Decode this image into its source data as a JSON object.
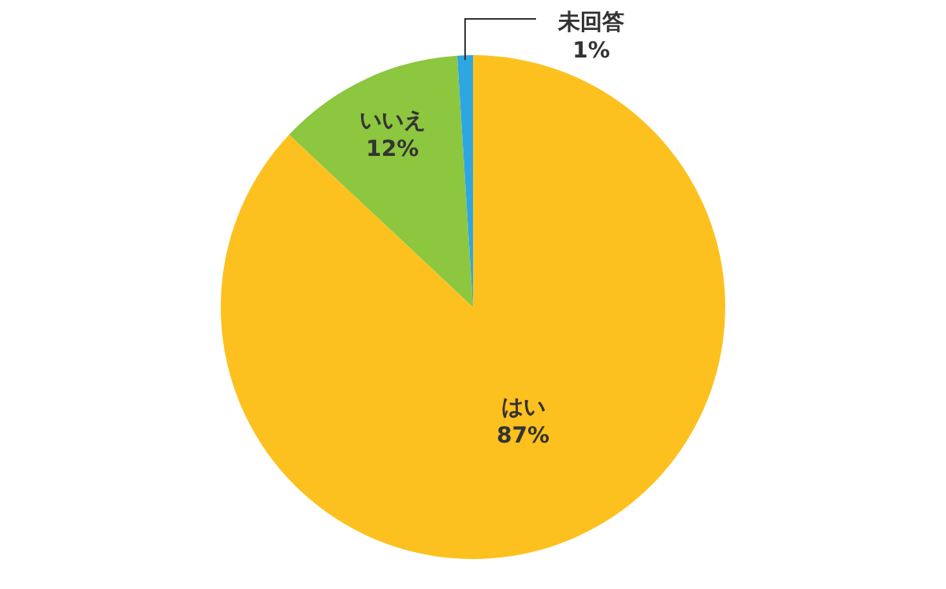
{
  "chart_data": {
    "type": "pie",
    "categories": [
      "はい",
      "いいえ",
      "未回答"
    ],
    "values": [
      87,
      12,
      1
    ],
    "colors": [
      "#fdc11f",
      "#8dc63f",
      "#2ea7e0"
    ],
    "value_labels": [
      "87%",
      "12%",
      "1%"
    ],
    "legend": false
  }
}
